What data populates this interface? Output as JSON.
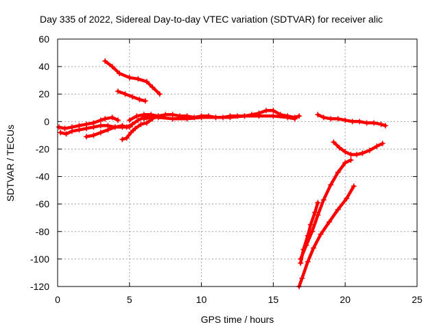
{
  "chart_data": {
    "type": "scatter",
    "title": "Day 335 of 2022, Sidereal Day-to-day VTEC variation (SDTVAR) for receiver alic",
    "xlabel": "GPS time / hours",
    "ylabel": "SDTVAR / TECUs",
    "xlim": [
      0,
      25
    ],
    "ylim": [
      -120,
      60
    ],
    "xticks": [
      "0",
      "5",
      "10",
      "15",
      "20",
      "25"
    ],
    "yticks": [
      "-120",
      "-100",
      "-80",
      "-60",
      "-40",
      "-20",
      "0",
      "20",
      "40",
      "60"
    ],
    "grid": true,
    "legend": "none",
    "marker": "plus",
    "color": "#ff0000",
    "series": [
      {
        "x": [
          3.3,
          3.8,
          4.3,
          5.0,
          5.6,
          6.2,
          6.6,
          7.1
        ],
        "y": [
          44,
          40,
          35,
          32,
          31,
          29,
          25,
          20
        ]
      },
      {
        "x": [
          4.2,
          4.7,
          5.2,
          5.7,
          6.1
        ],
        "y": [
          22,
          20,
          18,
          16,
          15
        ]
      },
      {
        "x": [
          0.1,
          0.5,
          1.0,
          1.5,
          2.0,
          2.5,
          3.0,
          3.3,
          3.8,
          4.2
        ],
        "y": [
          -4,
          -5,
          -4,
          -3,
          -2,
          -1,
          1,
          2,
          3,
          1
        ]
      },
      {
        "x": [
          0.2,
          0.6,
          1.0,
          1.5,
          2.0,
          2.5,
          3.0,
          3.5,
          4.0,
          4.5,
          5.0
        ],
        "y": [
          -8,
          -9,
          -7,
          -6,
          -5,
          -4,
          -3,
          -3,
          -4,
          -4,
          -4
        ]
      },
      {
        "x": [
          2.0,
          2.5,
          3.0,
          3.5,
          4.0,
          4.5,
          4.8,
          5.2,
          5.6,
          6.0,
          6.5
        ],
        "y": [
          -11,
          -10,
          -8,
          -6,
          -4,
          -3,
          -4,
          -2,
          1,
          3,
          4
        ]
      },
      {
        "x": [
          4.5,
          4.8,
          5.1,
          5.4,
          5.8,
          6.2,
          6.6
        ],
        "y": [
          -13,
          -12,
          -8,
          -5,
          -2,
          -1,
          2
        ]
      },
      {
        "x": [
          5.0,
          5.5,
          6.0,
          6.5,
          7.0,
          7.5,
          8.0,
          8.5,
          9.0,
          9.5,
          10.0,
          10.5,
          11.0,
          11.5,
          12.0,
          12.5,
          13.0,
          13.5,
          14.0,
          14.5,
          15.0,
          15.5,
          16.0,
          16.5,
          16.8
        ],
        "y": [
          1,
          4,
          5,
          5,
          4,
          5,
          5,
          4,
          4,
          3,
          4,
          4,
          3,
          3,
          4,
          4,
          4,
          5,
          6,
          8,
          8,
          5,
          4,
          3,
          4
        ]
      },
      {
        "x": [
          6.0,
          6.5,
          7.0,
          8.0,
          9.0,
          10.0,
          11.0,
          12.0,
          13.0,
          14.0,
          15.0,
          16.0,
          16.5
        ],
        "y": [
          2,
          3,
          3,
          2,
          2,
          3,
          3,
          3,
          4,
          4,
          4,
          3,
          2
        ]
      },
      {
        "x": [
          18.1,
          18.5,
          19.0,
          19.5,
          20.0,
          20.5,
          21.0,
          21.5,
          22.0,
          22.5,
          22.8
        ],
        "y": [
          5,
          3,
          2,
          2,
          1,
          0,
          0,
          -1,
          -1,
          -2,
          -3
        ]
      },
      {
        "x": [
          19.2,
          19.6,
          20.0,
          20.4,
          20.8,
          21.2,
          21.7,
          22.2,
          22.6
        ],
        "y": [
          -15,
          -19,
          -22,
          -24,
          -24,
          -23,
          -21,
          -18,
          -16
        ]
      },
      {
        "x": [
          16.9,
          17.3,
          17.7,
          18.1,
          18.5,
          19.0,
          19.5,
          20.0,
          20.4
        ],
        "y": [
          -100,
          -90,
          -80,
          -68,
          -57,
          -46,
          -37,
          -30,
          -28
        ]
      },
      {
        "x": [
          16.9,
          17.1,
          17.4,
          17.6,
          17.9,
          18.1
        ],
        "y": [
          -103,
          -93,
          -83,
          -75,
          -66,
          -59
        ]
      },
      {
        "x": [
          16.8,
          17.0,
          17.4,
          17.8,
          18.3,
          18.9,
          19.5,
          20.1,
          20.6
        ],
        "y": [
          -120,
          -114,
          -102,
          -92,
          -82,
          -73,
          -64,
          -56,
          -47
        ]
      }
    ]
  }
}
